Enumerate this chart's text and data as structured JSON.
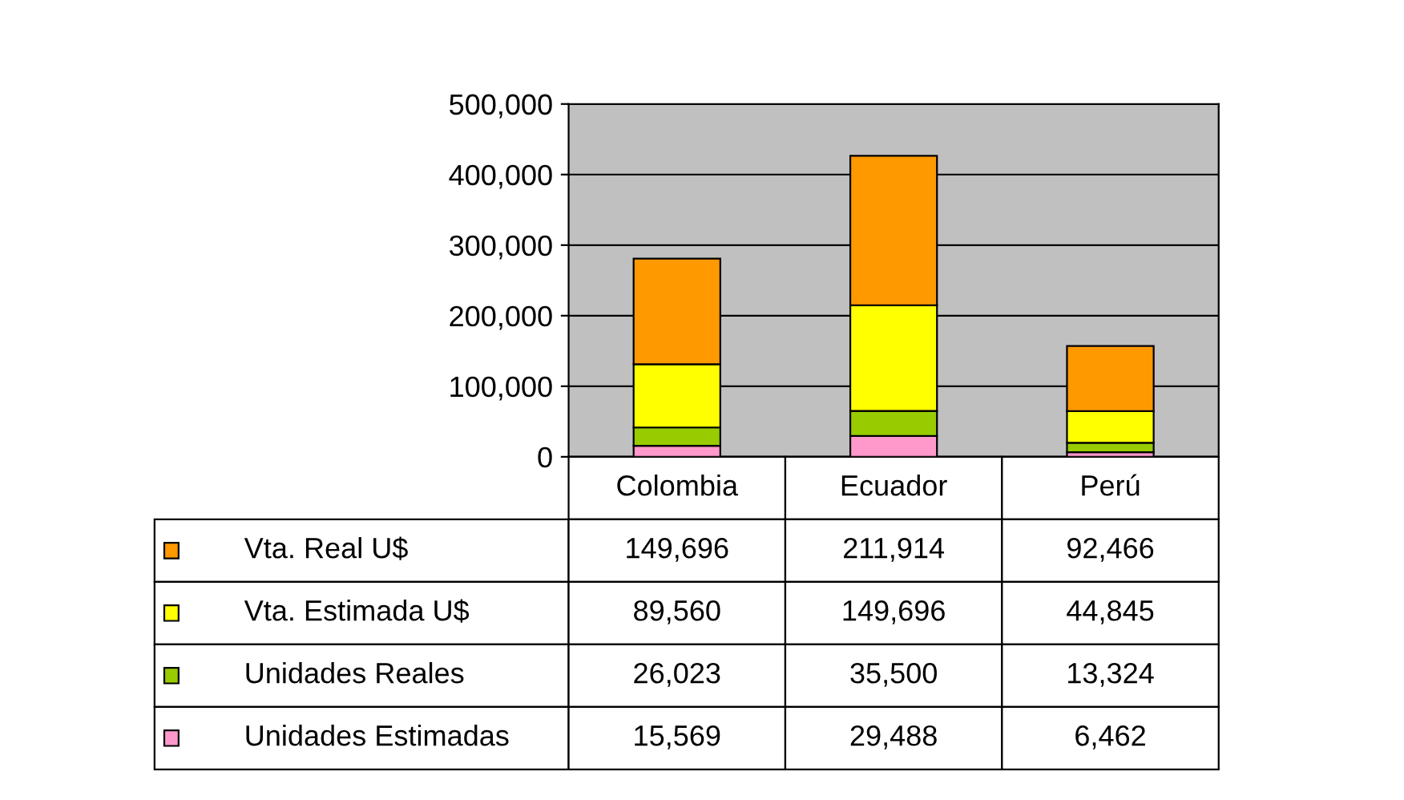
{
  "chart_data": {
    "type": "bar",
    "stacked": true,
    "categories": [
      "Colombia",
      "Ecuador",
      "Perú"
    ],
    "series": [
      {
        "name": "Unidades Estimadas",
        "color": "#ff99cc",
        "values": [
          15569,
          29488,
          6462
        ],
        "value_labels": [
          "15,569",
          "29,488",
          "6,462"
        ]
      },
      {
        "name": "Unidades Reales",
        "color": "#99cc00",
        "values": [
          26023,
          35500,
          13324
        ],
        "value_labels": [
          "26,023",
          "35,500",
          "13,324"
        ]
      },
      {
        "name": "Vta. Estimada U$",
        "color": "#ffff00",
        "values": [
          89560,
          149696,
          44845
        ],
        "value_labels": [
          "89,560",
          "149,696",
          "44,845"
        ]
      },
      {
        "name": "Vta. Real U$",
        "color": "#ff9900",
        "values": [
          149696,
          211914,
          92466
        ],
        "value_labels": [
          "149,696",
          "211,914",
          "92,466"
        ]
      }
    ],
    "ylim": [
      0,
      500000
    ],
    "yticks": [
      {
        "value": 0,
        "label": "0"
      },
      {
        "value": 100000,
        "label": "100,000"
      },
      {
        "value": 200000,
        "label": "200,000"
      },
      {
        "value": 300000,
        "label": "300,000"
      },
      {
        "value": 400000,
        "label": "400,000"
      },
      {
        "value": 500000,
        "label": "500,000"
      }
    ],
    "grid": "y",
    "legend": "bottom"
  }
}
